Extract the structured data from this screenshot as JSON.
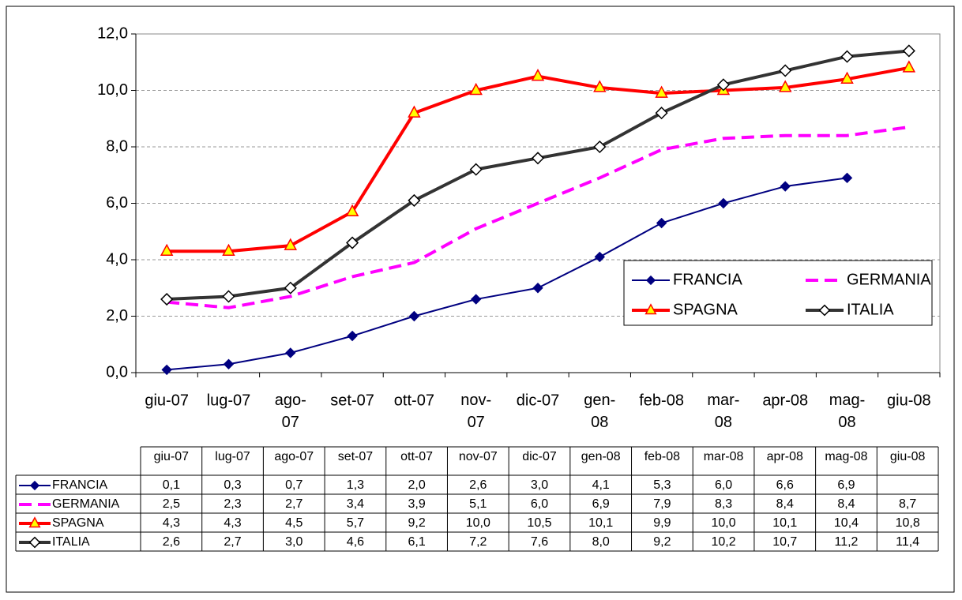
{
  "chart_data": {
    "type": "line",
    "categories": [
      "giu-07",
      "lug-07",
      "ago-07",
      "set-07",
      "ott-07",
      "nov-07",
      "dic-07",
      "gen-08",
      "feb-08",
      "mar-08",
      "apr-08",
      "mag-08",
      "giu-08"
    ],
    "series": [
      {
        "name": "FRANCIA",
        "color": "#000080",
        "marker": "diamond",
        "dash": false,
        "values": [
          0.1,
          0.3,
          0.7,
          1.3,
          2.0,
          2.6,
          3.0,
          4.1,
          5.3,
          6.0,
          6.6,
          6.9,
          null
        ],
        "value_labels": [
          "0,1",
          "0,3",
          "0,7",
          "1,3",
          "2,0",
          "2,6",
          "3,0",
          "4,1",
          "5,3",
          "6,0",
          "6,6",
          "6,9",
          null
        ]
      },
      {
        "name": "GERMANIA",
        "color": "#FF00FF",
        "marker": "none",
        "dash": true,
        "values": [
          2.5,
          2.3,
          2.7,
          3.4,
          3.9,
          5.1,
          6.0,
          6.9,
          7.9,
          8.3,
          8.4,
          8.4,
          8.7
        ],
        "value_labels": [
          "2,5",
          "2,3",
          "2,7",
          "3,4",
          "3,9",
          "5,1",
          "6,0",
          "6,9",
          "7,9",
          "8,3",
          "8,4",
          "8,4",
          "8,7"
        ]
      },
      {
        "name": "SPAGNA",
        "color": "#FF0000",
        "marker": "triangle",
        "dash": false,
        "values": [
          4.3,
          4.3,
          4.5,
          5.7,
          9.2,
          10.0,
          10.5,
          10.1,
          9.9,
          10.0,
          10.1,
          10.4,
          10.8
        ],
        "value_labels": [
          "4,3",
          "4,3",
          "4,5",
          "5,7",
          "9,2",
          "10,0",
          "10,5",
          "10,1",
          "9,9",
          "10,0",
          "10,1",
          "10,4",
          "10,8"
        ]
      },
      {
        "name": "ITALIA",
        "color": "#333333",
        "marker": "open-diamond",
        "dash": false,
        "values": [
          2.6,
          2.7,
          3.0,
          4.6,
          6.1,
          7.2,
          7.6,
          8.0,
          9.2,
          10.2,
          10.7,
          11.2,
          11.4
        ],
        "value_labels": [
          "2,6",
          "2,7",
          "3,0",
          "4,6",
          "6,1",
          "7,2",
          "7,6",
          "8,0",
          "9,2",
          "10,2",
          "10,7",
          "11,2",
          "11,4"
        ]
      }
    ],
    "ylim": [
      0,
      12
    ],
    "yticks": [
      {
        "value": 0,
        "label": "0,0"
      },
      {
        "value": 2,
        "label": "2,0"
      },
      {
        "value": 4,
        "label": "4,0"
      },
      {
        "value": 6,
        "label": "6,0"
      },
      {
        "value": 8,
        "label": "8,0"
      },
      {
        "value": 10,
        "label": "10,0"
      },
      {
        "value": 12,
        "label": "12,0"
      }
    ],
    "grid": true,
    "legend": "right",
    "data_table": true
  }
}
